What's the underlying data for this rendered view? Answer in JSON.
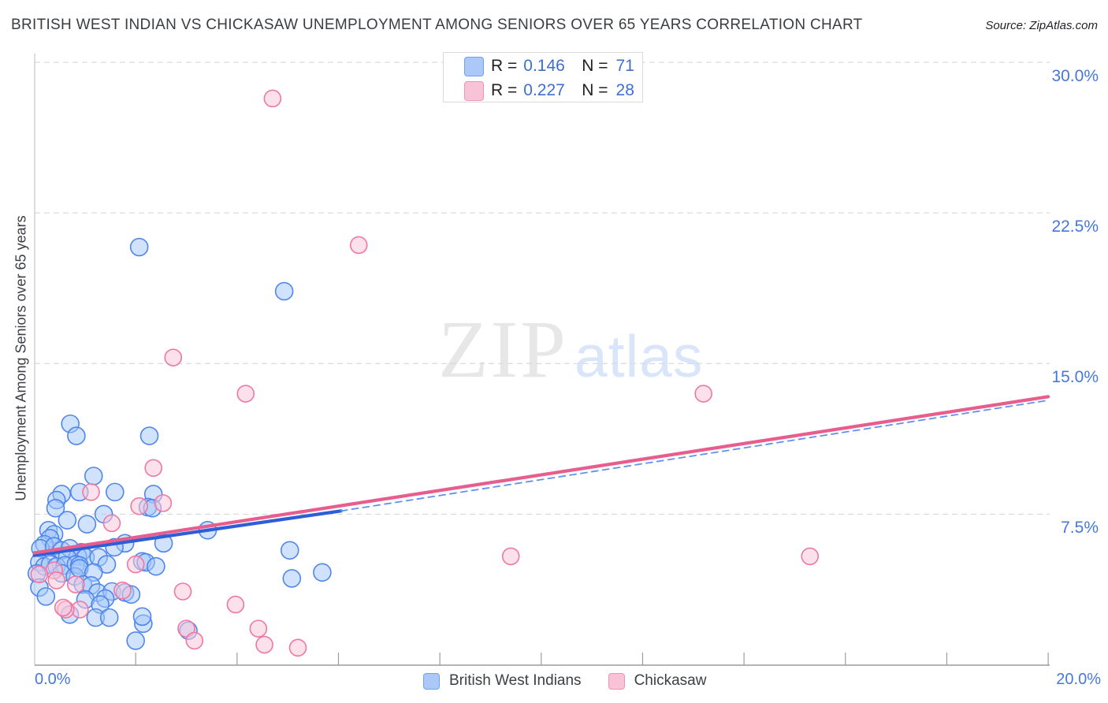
{
  "header": {
    "title": "BRITISH WEST INDIAN VS CHICKASAW UNEMPLOYMENT AMONG SENIORS OVER 65 YEARS CORRELATION CHART",
    "source_prefix": "Source:",
    "source_name": "ZipAtlas.com"
  },
  "legend_box": {
    "rows": [
      {
        "r_label": "R =",
        "r_value": "0.146",
        "n_label": "N =",
        "n_value": "71",
        "series": "British West Indians"
      },
      {
        "r_label": "R =",
        "r_value": "0.227",
        "n_label": "N =",
        "n_value": "28",
        "series": "Chickasaw"
      }
    ]
  },
  "watermark": {
    "zip": "ZIP",
    "atlas": "atlas"
  },
  "y_axis": {
    "title": "Unemployment Among Seniors over 65 years",
    "ticks": [
      {
        "label": "30.0%",
        "value": 30
      },
      {
        "label": "22.5%",
        "value": 22.5
      },
      {
        "label": "15.0%",
        "value": 15
      },
      {
        "label": "7.5%",
        "value": 7.5
      }
    ]
  },
  "x_axis": {
    "min_label": "0.0%",
    "max_label": "20.0%",
    "min": 0,
    "max": 20,
    "tick_step": 2
  },
  "bottom_legend": [
    {
      "label": "British West Indians",
      "color_key": "blue"
    },
    {
      "label": "Chickasaw",
      "color_key": "pink"
    }
  ],
  "colors": {
    "accent_text_blue": "#4678dc",
    "blue_point_stroke": "#4f86ec",
    "blue_point_fill": "rgba(164,199,250,0.5)",
    "pink_point_stroke": "#ee78a4",
    "pink_point_fill": "rgba(250,199,217,0.55)",
    "blue_trend": "#2c5ed8",
    "blue_trend_dashed": "#6191ef",
    "pink_trend": "#e75d8d",
    "gridline": "#d8d8d8",
    "axis": "#9c9c9c",
    "left_border": "#c9c9c9"
  },
  "chart_data": {
    "type": "scatter",
    "title": "BRITISH WEST INDIAN VS CHICKASAW UNEMPLOYMENT AMONG SENIORS OVER 65 YEARS CORRELATION CHART",
    "xlabel": "",
    "ylabel": "Unemployment Among Seniors over 65 years",
    "xlim": [
      0,
      20
    ],
    "ylim": [
      0,
      30
    ],
    "x_tick_interval_percent": 2,
    "y_gridlines_percent": [
      7.5,
      15,
      22.5,
      30
    ],
    "grid": "dashed-horizontal",
    "legend_position": "top-center",
    "series": [
      {
        "name": "British West Indians",
        "R": 0.146,
        "N": 71,
        "points": [
          [
            2.07,
            20.8
          ],
          [
            4.93,
            18.6
          ],
          [
            0.71,
            12.0
          ],
          [
            0.83,
            11.4
          ],
          [
            2.27,
            11.4
          ],
          [
            1.17,
            9.4
          ],
          [
            0.54,
            8.5
          ],
          [
            0.89,
            8.6
          ],
          [
            1.59,
            8.6
          ],
          [
            2.35,
            8.5
          ],
          [
            0.44,
            8.2
          ],
          [
            0.42,
            7.8
          ],
          [
            1.37,
            7.5
          ],
          [
            2.24,
            7.85
          ],
          [
            2.33,
            7.8
          ],
          [
            0.65,
            7.2
          ],
          [
            1.04,
            7.0
          ],
          [
            0.28,
            6.7
          ],
          [
            0.39,
            6.5
          ],
          [
            0.31,
            6.3
          ],
          [
            3.42,
            6.7
          ],
          [
            2.55,
            6.05
          ],
          [
            1.79,
            6.05
          ],
          [
            1.58,
            5.85
          ],
          [
            0.2,
            6.0
          ],
          [
            0.12,
            5.8
          ],
          [
            0.39,
            5.9
          ],
          [
            0.54,
            5.7
          ],
          [
            0.7,
            5.8
          ],
          [
            0.93,
            5.6
          ],
          [
            0.86,
            5.4
          ],
          [
            0.65,
            5.35
          ],
          [
            1.01,
            5.35
          ],
          [
            1.27,
            5.35
          ],
          [
            1.43,
            5.0
          ],
          [
            2.13,
            5.15
          ],
          [
            2.2,
            5.1
          ],
          [
            0.1,
            5.1
          ],
          [
            0.2,
            4.9
          ],
          [
            0.31,
            5.0
          ],
          [
            0.44,
            4.9
          ],
          [
            0.6,
            4.95
          ],
          [
            0.82,
            5.0
          ],
          [
            0.89,
            4.95
          ],
          [
            0.05,
            4.55
          ],
          [
            0.54,
            4.55
          ],
          [
            0.8,
            4.4
          ],
          [
            0.89,
            4.8
          ],
          [
            1.17,
            4.6
          ],
          [
            2.4,
            4.9
          ],
          [
            5.04,
            5.7
          ],
          [
            5.08,
            4.3
          ],
          [
            5.68,
            4.6
          ],
          [
            0.1,
            3.85
          ],
          [
            0.23,
            3.4
          ],
          [
            0.96,
            4.0
          ],
          [
            1.12,
            3.95
          ],
          [
            1.25,
            3.6
          ],
          [
            1.53,
            3.65
          ],
          [
            1.4,
            3.3
          ],
          [
            1.01,
            3.25
          ],
          [
            1.79,
            3.6
          ],
          [
            1.91,
            3.5
          ],
          [
            1.3,
            3.0
          ],
          [
            0.7,
            2.5
          ],
          [
            2.15,
            2.05
          ],
          [
            2.0,
            1.2
          ],
          [
            1.21,
            2.35
          ],
          [
            1.48,
            2.35
          ],
          [
            2.13,
            2.4
          ],
          [
            3.04,
            1.7
          ]
        ]
      },
      {
        "name": "Chickasaw",
        "R": 0.227,
        "N": 28,
        "points": [
          [
            4.7,
            28.2
          ],
          [
            6.4,
            20.9
          ],
          [
            2.74,
            15.3
          ],
          [
            4.17,
            13.5
          ],
          [
            13.2,
            13.5
          ],
          [
            2.35,
            9.8
          ],
          [
            1.12,
            8.6
          ],
          [
            2.54,
            8.05
          ],
          [
            2.07,
            7.9
          ],
          [
            1.53,
            7.05
          ],
          [
            9.4,
            5.4
          ],
          [
            15.3,
            5.4
          ],
          [
            2.0,
            5.0
          ],
          [
            0.39,
            4.7
          ],
          [
            0.44,
            4.2
          ],
          [
            0.1,
            4.5
          ],
          [
            0.82,
            4.0
          ],
          [
            1.74,
            3.7
          ],
          [
            2.93,
            3.65
          ],
          [
            0.9,
            2.75
          ],
          [
            0.62,
            2.75
          ],
          [
            0.57,
            2.85
          ],
          [
            3.97,
            3.0
          ],
          [
            3.0,
            1.8
          ],
          [
            3.16,
            1.2
          ],
          [
            4.42,
            1.8
          ],
          [
            4.54,
            1.0
          ],
          [
            5.2,
            0.85
          ]
        ]
      }
    ],
    "trend_lines": [
      {
        "series": "British West Indians",
        "style": "solid",
        "color_key": "blue_trend",
        "from": [
          0,
          5.45
        ],
        "to": [
          6.05,
          7.66
        ]
      },
      {
        "series": "British West Indians",
        "style": "dashed",
        "color_key": "blue_trend_dashed",
        "from": [
          6.05,
          7.66
        ],
        "to": [
          20,
          13.17
        ]
      },
      {
        "series": "Chickasaw",
        "style": "solid",
        "color_key": "pink_trend",
        "from": [
          0,
          5.57
        ],
        "to": [
          20,
          13.35
        ]
      }
    ]
  }
}
